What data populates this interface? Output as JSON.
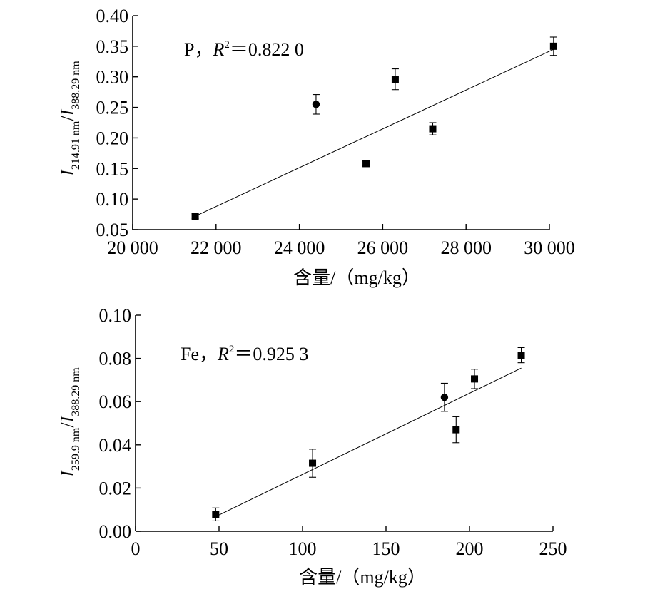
{
  "chart_data": [
    {
      "type": "scatter",
      "x": [
        21500,
        24400,
        25600,
        26300,
        27200,
        30100
      ],
      "y": [
        0.072,
        0.255,
        0.158,
        0.296,
        0.215,
        0.35
      ],
      "y_err": [
        0.004,
        0.016,
        0.004,
        0.017,
        0.01,
        0.015
      ],
      "markers": [
        "square",
        "circle",
        "square",
        "square",
        "square",
        "square"
      ],
      "fit": {
        "x": [
          21500,
          30100
        ],
        "y": [
          0.072,
          0.345
        ]
      },
      "xlim": [
        20000,
        30000
      ],
      "ylim": [
        0.05,
        0.4
      ],
      "x_ticks": [
        20000,
        22000,
        24000,
        26000,
        28000,
        30000
      ],
      "x_tick_labels": [
        "20 000",
        "22 000",
        "24 000",
        "26 000",
        "28 000",
        "30 000"
      ],
      "y_ticks": [
        0.05,
        0.1,
        0.15,
        0.2,
        0.25,
        0.3,
        0.35,
        0.4
      ],
      "y_tick_labels": [
        "0.05",
        "0.10",
        "0.15",
        "0.20",
        "0.25",
        "0.30",
        "0.35",
        "0.40"
      ],
      "xlabel": "含量/（mg/kg）",
      "ylabel": {
        "main": "I",
        "sub1": "214.91 nm",
        "sep": "/",
        "main2": "I",
        "sub2": "388.29 nm"
      },
      "annotation": {
        "element": "P，",
        "r": "R",
        "sup": "2",
        "value": "＝0.822 0"
      },
      "grid": false,
      "legend": "none"
    },
    {
      "type": "scatter",
      "x": [
        48,
        106,
        185,
        192,
        203,
        231
      ],
      "y": [
        0.0078,
        0.0315,
        0.062,
        0.047,
        0.0705,
        0.0815
      ],
      "y_err": [
        0.003,
        0.0065,
        0.0065,
        0.006,
        0.0045,
        0.0035
      ],
      "markers": [
        "square",
        "square",
        "circle",
        "square",
        "square",
        "square"
      ],
      "fit": {
        "x": [
          48,
          231
        ],
        "y": [
          0.0068,
          0.0755
        ]
      },
      "xlim": [
        0,
        250
      ],
      "ylim": [
        0,
        0.1
      ],
      "x_ticks": [
        0,
        50,
        100,
        150,
        200,
        250
      ],
      "x_tick_labels": [
        "0",
        "50",
        "100",
        "150",
        "200",
        "250"
      ],
      "y_ticks": [
        0,
        0.02,
        0.04,
        0.06,
        0.08,
        0.1
      ],
      "y_tick_labels": [
        "0.00",
        "0.02",
        "0.04",
        "0.06",
        "0.08",
        "0.10"
      ],
      "xlabel": "含量/（mg/kg）",
      "ylabel": {
        "main": "I",
        "sub1": "259.9 nm",
        "sep": "/",
        "main2": "I",
        "sub2": "388.29 nm"
      },
      "annotation": {
        "element": "Fe，",
        "r": "R",
        "sup": "2",
        "value": "＝0.925 3"
      },
      "grid": false,
      "legend": "none"
    }
  ]
}
